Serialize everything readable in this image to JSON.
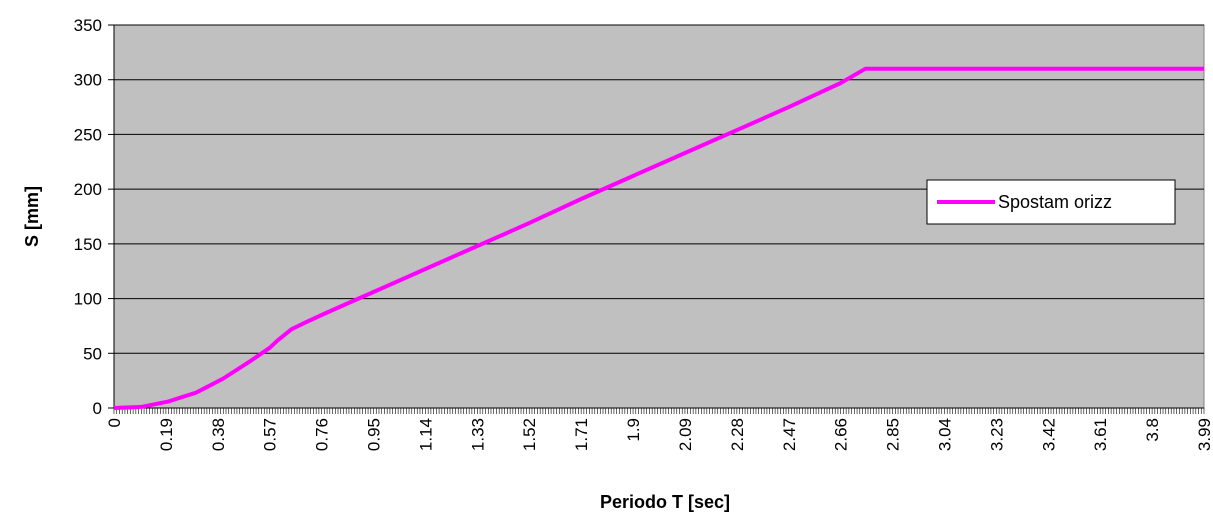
{
  "chart_data": {
    "type": "line",
    "xlabel": "Periodo T [sec]",
    "ylabel": "S [mm]",
    "ylim": [
      0,
      350
    ],
    "y_ticks": [
      "0",
      "50",
      "100",
      "150",
      "200",
      "250",
      "300",
      "350"
    ],
    "x_ticks": [
      "0",
      "0.19",
      "0.38",
      "0.57",
      "0.76",
      "0.95",
      "1.14",
      "1.33",
      "1.52",
      "1.71",
      "1.9",
      "2.09",
      "2.28",
      "2.47",
      "2.66",
      "2.85",
      "3.04",
      "3.23",
      "3.42",
      "3.61",
      "3.8",
      "3.99"
    ],
    "grid": "horizontal",
    "legend": "right",
    "plot_background": "#c0c0c0",
    "series": [
      {
        "name": "Spostam orizz",
        "color": "#ff00ff",
        "x": [
          0,
          0.1,
          0.2,
          0.3,
          0.4,
          0.5,
          0.57,
          0.6,
          0.65,
          0.7,
          0.76,
          0.85,
          0.95,
          1.14,
          1.33,
          1.52,
          1.71,
          1.9,
          2.09,
          2.28,
          2.47,
          2.66,
          2.75,
          2.85,
          3.04,
          3.23,
          3.42,
          3.61,
          3.8,
          3.99
        ],
        "y": [
          0,
          1,
          6,
          14,
          27,
          43,
          55,
          62,
          72,
          78,
          85,
          95,
          106,
          127,
          148,
          169,
          191,
          212,
          233,
          254,
          275,
          297,
          310,
          310,
          310,
          310,
          310,
          310,
          310,
          310
        ]
      }
    ]
  }
}
